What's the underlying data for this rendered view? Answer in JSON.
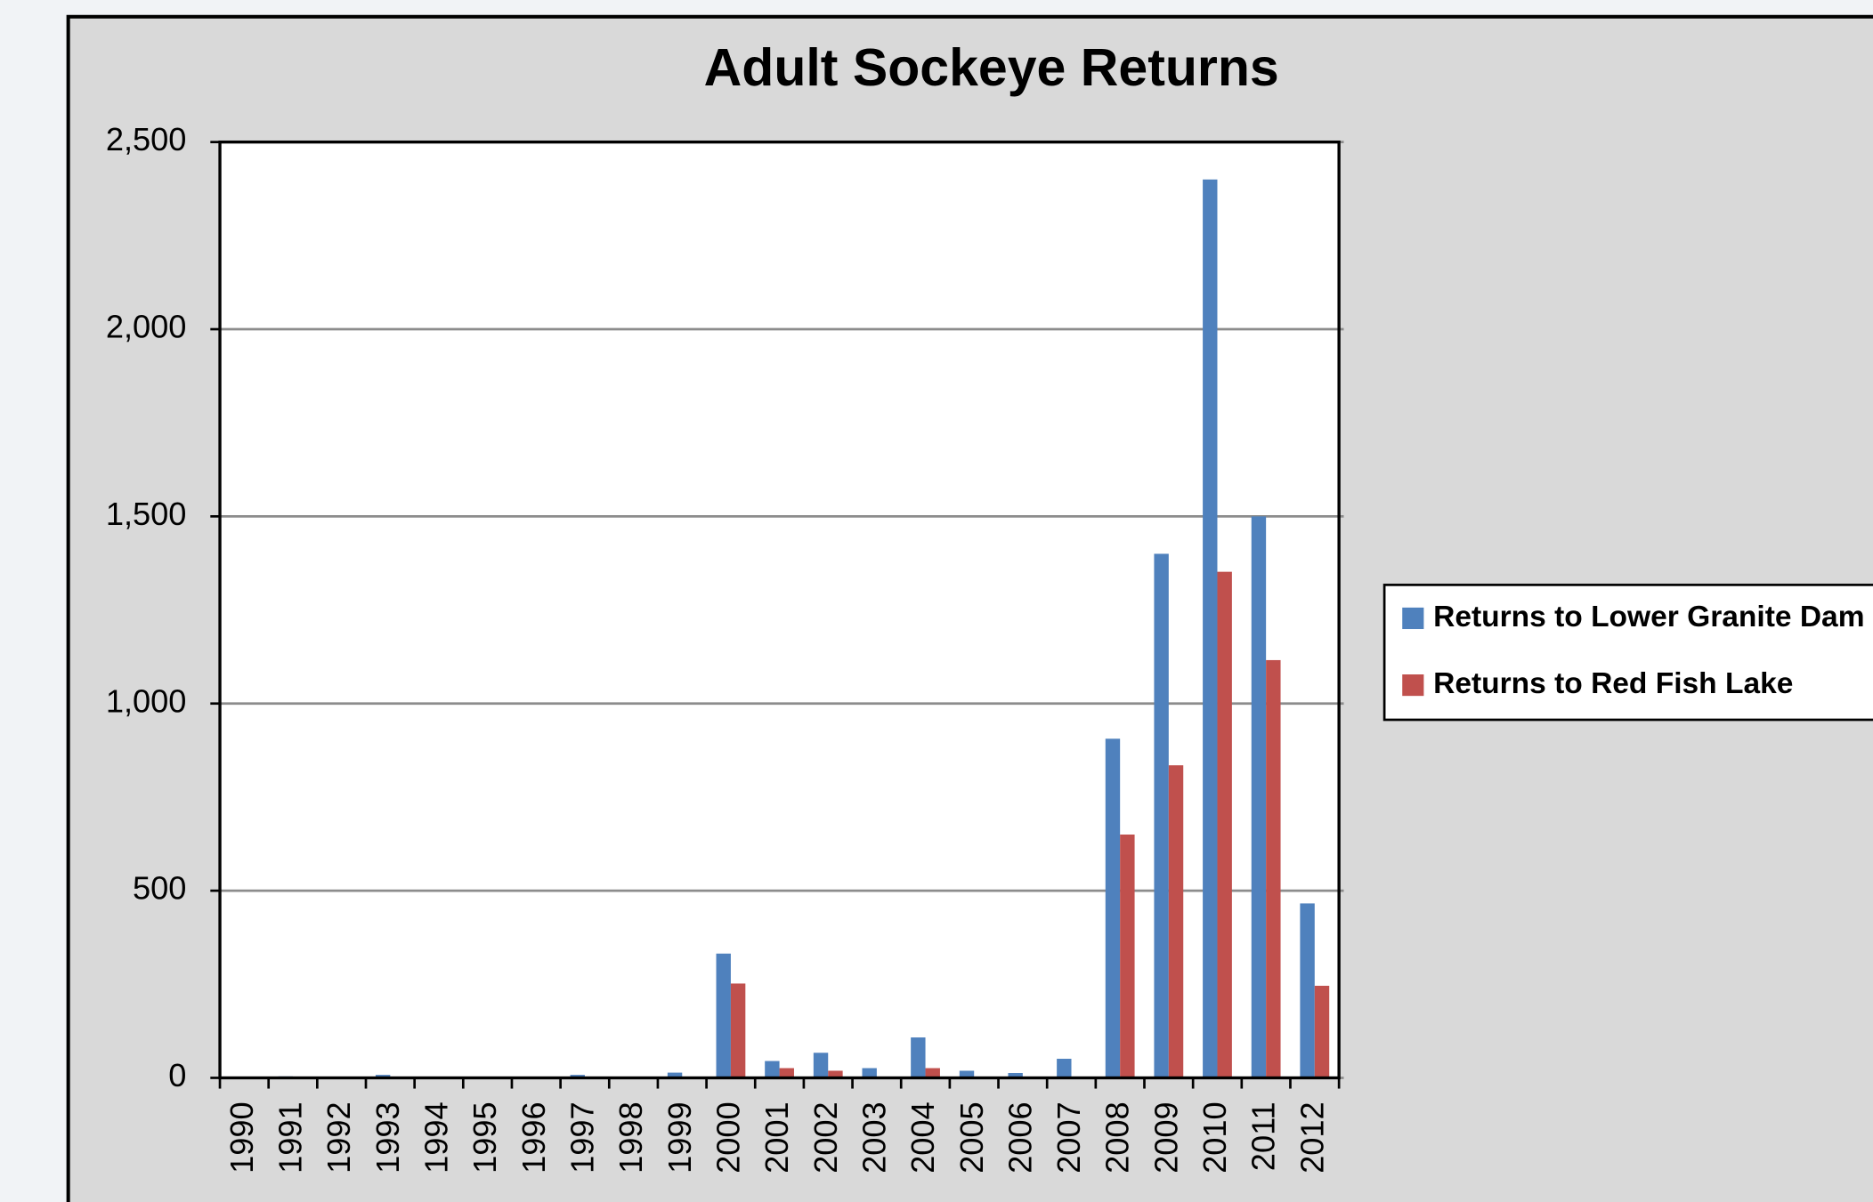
{
  "chart_data": {
    "type": "bar",
    "title": "Adult Sockeye Returns",
    "categories": [
      "1990",
      "1991",
      "1992",
      "1993",
      "1994",
      "1995",
      "1996",
      "1997",
      "1998",
      "1999",
      "2000",
      "2001",
      "2002",
      "2003",
      "2004",
      "2005",
      "2006",
      "2007",
      "2008",
      "2009",
      "2010",
      "2011",
      "2012"
    ],
    "series": [
      {
        "name": "Returns to Lower Granite Dam",
        "color": "#4f81bd",
        "values": [
          0,
          4,
          1,
          8,
          1,
          0,
          1,
          8,
          0,
          14,
          332,
          45,
          67,
          26,
          108,
          19,
          13,
          51,
          906,
          1400,
          2400,
          1500,
          466
        ]
      },
      {
        "name": "Returns to Red Fish Lake",
        "color": "#c0504d",
        "values": [
          0,
          0,
          0,
          0,
          0,
          0,
          0,
          0,
          0,
          0,
          252,
          26,
          19,
          3,
          26,
          0,
          0,
          0,
          650,
          835,
          1352,
          1116,
          246
        ]
      }
    ],
    "ylim": [
      0,
      2500
    ],
    "yticks": [
      0,
      500,
      {
        "value": 1000,
        "label": "1,000"
      },
      {
        "value": 1500,
        "label": "1,500"
      },
      {
        "value": 2000,
        "label": "2,000"
      },
      {
        "value": 2500,
        "label": "2,500"
      }
    ],
    "grid": true,
    "legend": "right"
  }
}
